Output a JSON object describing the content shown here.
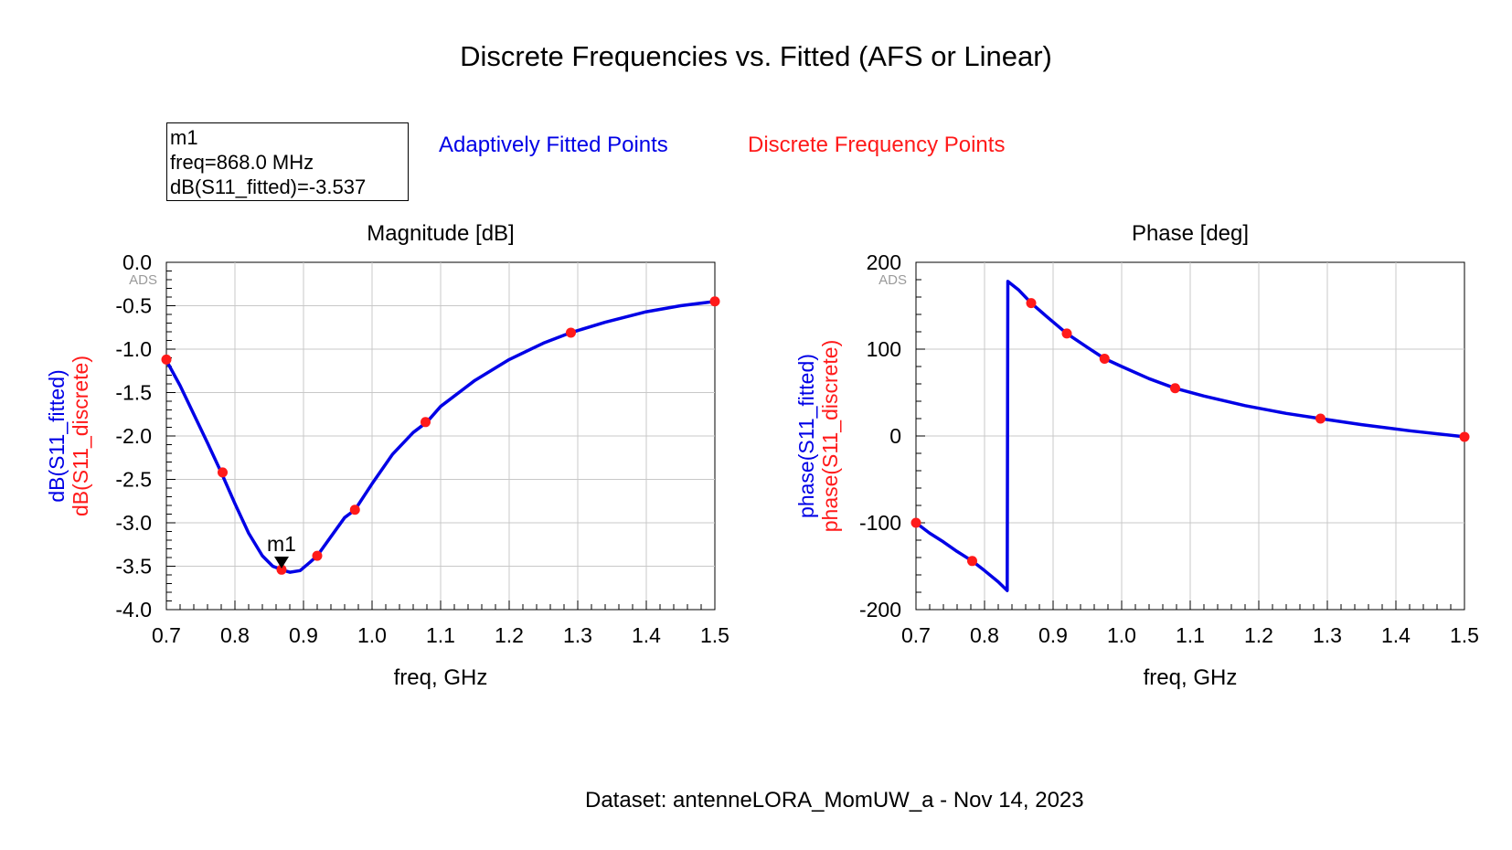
{
  "title": "Discrete Frequencies vs. Fitted (AFS or Linear)",
  "marker_box": {
    "name": "m1",
    "freq_line": "freq=868.0 MHz",
    "value_line": "dB(S11_fitted)=-3.537"
  },
  "legend": {
    "fitted": "Adaptively Fitted Points",
    "discrete": "Discrete Frequency Points"
  },
  "colors": {
    "fitted": "#0000e6",
    "discrete": "#ff1a1a",
    "grid": "#c8c8c8"
  },
  "watermark": "ADS",
  "dataset": "Dataset: antenneLORA_MomUW_a - Nov 14, 2023",
  "chart_data": [
    {
      "type": "line",
      "title": "Magnitude [dB]",
      "xlabel": "freq, GHz",
      "ylabel_fitted": "dB(S11_fitted)",
      "ylabel_discrete": "dB(S11_discrete)",
      "xlim": [
        0.7,
        1.5
      ],
      "ylim": [
        -4.0,
        0.0
      ],
      "xticks": [
        "0.7",
        "0.8",
        "0.9",
        "1.0",
        "1.1",
        "1.2",
        "1.3",
        "1.4",
        "1.5"
      ],
      "xtick_values": [
        0.7,
        0.8,
        0.9,
        1.0,
        1.1,
        1.2,
        1.3,
        1.4,
        1.5
      ],
      "yticks": [
        "0.0",
        "-0.5",
        "-1.0",
        "-1.5",
        "-2.0",
        "-2.5",
        "-3.0",
        "-3.5",
        "-4.0"
      ],
      "ytick_values": [
        0.0,
        -0.5,
        -1.0,
        -1.5,
        -2.0,
        -2.5,
        -3.0,
        -3.5,
        -4.0
      ],
      "grid": true,
      "series": [
        {
          "name": "Adaptively Fitted Points",
          "role": "fitted",
          "x": [
            0.7,
            0.72,
            0.74,
            0.76,
            0.78,
            0.8,
            0.82,
            0.84,
            0.855,
            0.868,
            0.88,
            0.895,
            0.91,
            0.92,
            0.94,
            0.96,
            0.975,
            1.0,
            1.03,
            1.06,
            1.08,
            1.1,
            1.15,
            1.2,
            1.25,
            1.29,
            1.34,
            1.4,
            1.45,
            1.5
          ],
          "y": [
            -1.13,
            -1.42,
            -1.75,
            -2.08,
            -2.42,
            -2.78,
            -3.12,
            -3.38,
            -3.5,
            -3.54,
            -3.57,
            -3.55,
            -3.45,
            -3.38,
            -3.16,
            -2.94,
            -2.85,
            -2.55,
            -2.21,
            -1.96,
            -1.84,
            -1.66,
            -1.36,
            -1.12,
            -0.93,
            -0.81,
            -0.69,
            -0.57,
            -0.5,
            -0.45
          ]
        },
        {
          "name": "Discrete Frequency Points",
          "role": "discrete",
          "x": [
            0.7,
            0.782,
            0.868,
            0.92,
            0.975,
            1.078,
            1.29,
            1.5
          ],
          "y": [
            -1.12,
            -2.42,
            -3.54,
            -3.38,
            -2.85,
            -1.84,
            -0.81,
            -0.45
          ]
        }
      ],
      "marker": {
        "name": "m1",
        "x": 0.868,
        "y": -3.537
      }
    },
    {
      "type": "line",
      "title": "Phase [deg]",
      "xlabel": "freq, GHz",
      "ylabel_fitted": "phase(S11_fitted)",
      "ylabel_discrete": "phase(S11_discrete)",
      "xlim": [
        0.7,
        1.5
      ],
      "ylim": [
        -200,
        200
      ],
      "xticks": [
        "0.7",
        "0.8",
        "0.9",
        "1.0",
        "1.1",
        "1.2",
        "1.3",
        "1.4",
        "1.5"
      ],
      "xtick_values": [
        0.7,
        0.8,
        0.9,
        1.0,
        1.1,
        1.2,
        1.3,
        1.4,
        1.5
      ],
      "yticks": [
        "200",
        "100",
        "0",
        "-100",
        "-200"
      ],
      "ytick_values": [
        200,
        100,
        0,
        -100,
        -200
      ],
      "grid": true,
      "series": [
        {
          "name": "Adaptively Fitted Points",
          "role": "fitted",
          "x": [
            0.7,
            0.72,
            0.74,
            0.76,
            0.782,
            0.8,
            0.82,
            0.833,
            0.834,
            0.85,
            0.868,
            0.89,
            0.92,
            0.95,
            0.975,
            1.0,
            1.04,
            1.078,
            1.12,
            1.18,
            1.24,
            1.29,
            1.35,
            1.42,
            1.5
          ],
          "y": [
            -100,
            -112,
            -122,
            -133,
            -144,
            -155,
            -168,
            -178,
            178,
            168,
            153,
            138,
            118,
            102,
            89,
            80,
            66,
            55,
            46,
            35,
            26,
            20,
            13,
            6,
            -1
          ]
        },
        {
          "name": "Discrete Frequency Points",
          "role": "discrete",
          "x": [
            0.7,
            0.782,
            0.868,
            0.92,
            0.975,
            1.078,
            1.29,
            1.5
          ],
          "y": [
            -100,
            -144,
            153,
            118,
            89,
            55,
            20,
            -1
          ]
        }
      ]
    }
  ]
}
